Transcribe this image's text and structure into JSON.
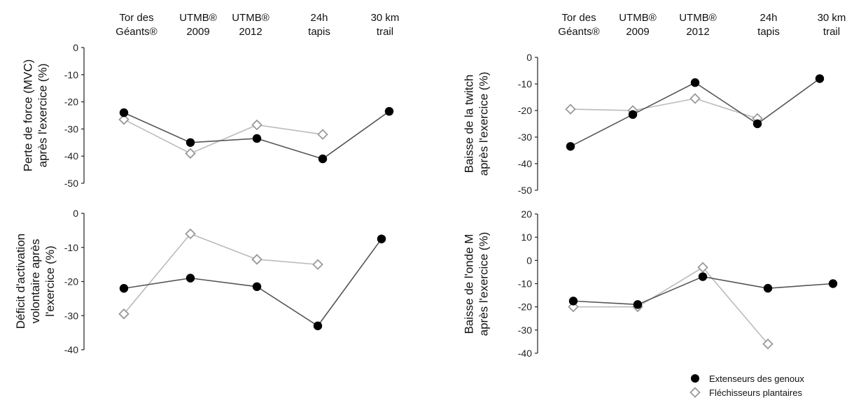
{
  "categories": [
    [
      "Tor des",
      "Géants®"
    ],
    [
      "UTMB®",
      "2009"
    ],
    [
      "UTMB®",
      "2012"
    ],
    [
      "24h",
      "tapis"
    ],
    [
      "30 km",
      "trail"
    ]
  ],
  "legend": {
    "knee": "Extenseurs des genoux",
    "plantar": "Fléchisseurs plantaires"
  },
  "colors": {
    "knee_marker": "#000000",
    "knee_line": "#555555",
    "plantar_marker": "#9a9a9a",
    "plantar_line": "#bbbbbb"
  },
  "chart_data": [
    {
      "id": "force",
      "type": "line",
      "ylabel": [
        "Perte de force (MVC)",
        "après l'exercice (%)"
      ],
      "ylim": [
        -50,
        0
      ],
      "yticks": [
        0,
        -10,
        -20,
        -30,
        -40,
        -50
      ],
      "series": [
        {
          "name": "Extenseurs des genoux",
          "values": [
            -24,
            -35,
            -33.5,
            -41,
            -23.5
          ]
        },
        {
          "name": "Fléchisseurs plantaires",
          "values": [
            -26.5,
            -39,
            -28.5,
            -32,
            null
          ]
        }
      ]
    },
    {
      "id": "twitch",
      "type": "line",
      "ylabel": [
        "Baisse de la twitch",
        "après l'exercice (%)"
      ],
      "ylim": [
        -50,
        0
      ],
      "yticks": [
        0,
        -10,
        -20,
        -30,
        -40,
        -50
      ],
      "series": [
        {
          "name": "Extenseurs des genoux",
          "values": [
            -33.5,
            -21.5,
            -9.5,
            -25,
            -8
          ]
        },
        {
          "name": "Fléchisseurs plantaires",
          "values": [
            -19.5,
            -20,
            -15.5,
            -23,
            null
          ]
        }
      ]
    },
    {
      "id": "activation",
      "type": "line",
      "ylabel": [
        "Déficit d'activation",
        "volontaire après",
        "l'exercice (%)"
      ],
      "ylim": [
        -40,
        0
      ],
      "yticks": [
        0,
        -10,
        -20,
        -30,
        -40
      ],
      "series": [
        {
          "name": "Extenseurs des genoux",
          "values": [
            -22,
            -19,
            -21.5,
            -33,
            -7.5
          ]
        },
        {
          "name": "Fléchisseurs plantaires",
          "values": [
            -29.5,
            -6,
            -13.5,
            -15,
            null
          ]
        }
      ]
    },
    {
      "id": "mwave",
      "type": "line",
      "ylabel": [
        "Baisse de l'onde M",
        "après l'exercice (%)"
      ],
      "ylim": [
        -40,
        20
      ],
      "yticks": [
        20,
        10,
        0,
        -10,
        -20,
        -30,
        -40
      ],
      "series": [
        {
          "name": "Extenseurs des genoux",
          "values": [
            -17.5,
            -19,
            -7,
            -12,
            -10
          ]
        },
        {
          "name": "Fléchisseurs plantaires",
          "values": [
            -20,
            -20,
            -3,
            -36,
            null
          ]
        }
      ]
    }
  ]
}
